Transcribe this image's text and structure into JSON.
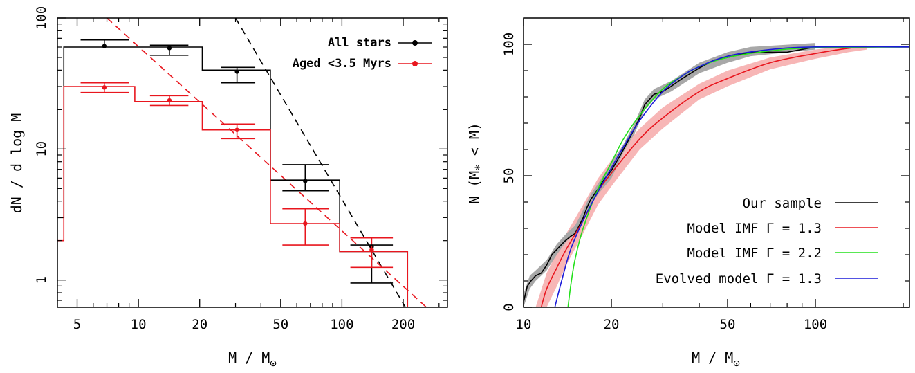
{
  "chart_data": [
    {
      "type": "histogram",
      "xlabel": "M / M",
      "xlabel_sub": "⊙",
      "ylabel": "dN / d log M",
      "xscale": "log",
      "yscale": "log",
      "xlim": [
        4.0,
        330
      ],
      "ylim": [
        0.62,
        100
      ],
      "xticks": [
        5,
        10,
        20,
        50,
        100,
        200
      ],
      "xtick_labels": [
        "5",
        "10",
        "20",
        "50",
        "100",
        "200"
      ],
      "yticks": [
        1,
        10,
        100
      ],
      "ytick_labels": [
        "1",
        "10",
        "100"
      ],
      "legend_position": "top-right",
      "series": [
        {
          "name": "All stars",
          "color": "#000000",
          "bin_edges": [
            4.3,
            9.6,
            20.6,
            44.5,
            97.5,
            210
          ],
          "step_values": [
            60,
            60,
            40,
            5.8,
            1.65
          ],
          "left_edge_value": 3.0,
          "points": [
            {
              "x": 6.8,
              "y": 61,
              "yerr_low": 0,
              "yerr_high": 68
            },
            {
              "x": 14.2,
              "y": 59,
              "yerr_low": 52,
              "yerr_high": 62
            },
            {
              "x": 30.5,
              "y": 39,
              "yerr_low": 32,
              "yerr_high": 42
            },
            {
              "x": 66,
              "y": 5.7,
              "yerr_low": 4.8,
              "yerr_high": 7.6
            },
            {
              "x": 140,
              "y": 1.8,
              "yerr_low": 0.95,
              "yerr_high": 1.85
            }
          ]
        },
        {
          "name": "Aged <3.5 Myrs",
          "color": "#e8161e",
          "bin_edges": [
            4.3,
            9.6,
            20.6,
            44.5,
            97.5,
            210
          ],
          "step_values": [
            30,
            23,
            14,
            2.7,
            1.65
          ],
          "left_edge_value": 2.0,
          "points": [
            {
              "x": 6.8,
              "y": 29.5,
              "yerr_low": 27,
              "yerr_high": 32
            },
            {
              "x": 14.2,
              "y": 23.5,
              "yerr_low": 21.5,
              "yerr_high": 25.5
            },
            {
              "x": 30.5,
              "y": 14,
              "yerr_low": 12,
              "yerr_high": 15.5
            },
            {
              "x": 66,
              "y": 2.7,
              "yerr_low": 1.85,
              "yerr_high": 3.5
            },
            {
              "x": 140,
              "y": 1.7,
              "yerr_low": 1.25,
              "yerr_high": 2.1
            }
          ]
        }
      ],
      "fits": [
        {
          "color": "#000000",
          "dashed": true,
          "points": [
            [
              30,
              100
            ],
            [
              205,
              0.62
            ]
          ]
        },
        {
          "color": "#e8161e",
          "dashed": true,
          "points": [
            [
              7.0,
              100
            ],
            [
              260,
              0.62
            ]
          ]
        }
      ],
      "caps": [
        {
          "color": "#000000",
          "x": [
            5.2,
            9.0
          ],
          "y": 68
        },
        {
          "color": "#000000",
          "x": [
            11.4,
            17.6
          ],
          "y": 62
        },
        {
          "color": "#000000",
          "x": [
            11.4,
            17.6
          ],
          "y": 52
        },
        {
          "color": "#000000",
          "x": [
            25.5,
            37.5
          ],
          "y": 42
        },
        {
          "color": "#000000",
          "x": [
            25.5,
            37.5
          ],
          "y": 32
        },
        {
          "color": "#000000",
          "x": [
            51,
            86
          ],
          "y": 7.6
        },
        {
          "color": "#000000",
          "x": [
            51,
            86
          ],
          "y": 4.8
        },
        {
          "color": "#000000",
          "x": [
            110,
            178
          ],
          "y": 1.85
        },
        {
          "color": "#000000",
          "x": [
            110,
            178
          ],
          "y": 0.95
        },
        {
          "color": "#e8161e",
          "x": [
            5.2,
            9.0
          ],
          "y": 32
        },
        {
          "color": "#e8161e",
          "x": [
            5.2,
            9.0
          ],
          "y": 27
        },
        {
          "color": "#e8161e",
          "x": [
            11.4,
            17.6
          ],
          "y": 25.5
        },
        {
          "color": "#e8161e",
          "x": [
            11.4,
            17.6
          ],
          "y": 21.5
        },
        {
          "color": "#e8161e",
          "x": [
            25.5,
            37.5
          ],
          "y": 15.5
        },
        {
          "color": "#e8161e",
          "x": [
            25.5,
            37.5
          ],
          "y": 12
        },
        {
          "color": "#e8161e",
          "x": [
            51,
            86
          ],
          "y": 3.5
        },
        {
          "color": "#e8161e",
          "x": [
            51,
            86
          ],
          "y": 1.85
        },
        {
          "color": "#e8161e",
          "x": [
            110,
            178
          ],
          "y": 2.1
        },
        {
          "color": "#e8161e",
          "x": [
            110,
            178
          ],
          "y": 1.25
        }
      ]
    },
    {
      "type": "line",
      "xlabel": "M / M",
      "xlabel_sub": "⊙",
      "ylabel_pre": "N (M",
      "ylabel_sub": "*",
      "ylabel_post": " < M)",
      "xscale": "log",
      "xlim": [
        10,
        210
      ],
      "ylim": [
        0,
        110
      ],
      "xticks": [
        10,
        20,
        50,
        100
      ],
      "xtick_labels": [
        "10",
        "20",
        "50",
        "100"
      ],
      "yticks": [
        0,
        50,
        100
      ],
      "ytick_labels": [
        "0",
        "50",
        "100"
      ],
      "legend_position": "bottom-right",
      "series": [
        {
          "name": "Our sample",
          "color": "#000000",
          "points": [
            [
              10.0,
              2
            ],
            [
              10.3,
              8
            ],
            [
              10.6,
              10
            ],
            [
              11.0,
              12
            ],
            [
              11.5,
              13
            ],
            [
              12.0,
              16
            ],
            [
              12.5,
              20
            ],
            [
              13.0,
              22
            ],
            [
              13.8,
              25
            ],
            [
              14.5,
              27
            ],
            [
              15.0,
              28
            ],
            [
              15.5,
              31
            ],
            [
              16.0,
              34
            ],
            [
              16.5,
              38
            ],
            [
              17.0,
              41
            ],
            [
              18.0,
              45
            ],
            [
              19.0,
              49
            ],
            [
              20.0,
              52
            ],
            [
              21.5,
              58
            ],
            [
              22.5,
              62
            ],
            [
              23.0,
              64
            ],
            [
              24.0,
              68
            ],
            [
              25.0,
              72
            ],
            [
              26.0,
              77
            ],
            [
              28.0,
              81
            ],
            [
              30.0,
              82
            ],
            [
              32.0,
              84
            ],
            [
              35.0,
              87
            ],
            [
              40.0,
              91
            ],
            [
              45.0,
              94
            ],
            [
              50.0,
              95
            ],
            [
              60.0,
              97
            ],
            [
              80.0,
              97
            ],
            [
              100.0,
              99
            ],
            [
              210.0,
              99
            ]
          ]
        },
        {
          "name": "Model IMF Γ = 1.3",
          "color": "#e8161e",
          "points": [
            [
              11.5,
              0
            ],
            [
              12.0,
              7
            ],
            [
              13.0,
              15
            ],
            [
              14.0,
              22
            ],
            [
              16.0,
              33
            ],
            [
              18.0,
              44
            ],
            [
              20.0,
              51
            ],
            [
              25.0,
              64
            ],
            [
              30.0,
              72
            ],
            [
              40.0,
              82
            ],
            [
              50.0,
              87
            ],
            [
              70.0,
              93
            ],
            [
              100.0,
              96.5
            ],
            [
              130.0,
              98.5
            ],
            [
              150.0,
              99
            ],
            [
              210.0,
              99
            ]
          ]
        },
        {
          "name": "Model IMF Γ = 2.2",
          "color": "#22e01a",
          "points": [
            [
              14.2,
              0
            ],
            [
              14.5,
              8
            ],
            [
              15.0,
              18
            ],
            [
              16.0,
              30
            ],
            [
              18.0,
              45
            ],
            [
              20.0,
              55
            ],
            [
              22.0,
              64
            ],
            [
              25.0,
              73
            ],
            [
              30.0,
              83
            ],
            [
              35.0,
              88
            ],
            [
              40.0,
              91.5
            ],
            [
              50.0,
              95
            ],
            [
              70.0,
              97.5
            ],
            [
              100.0,
              98.7
            ],
            [
              210.0,
              99
            ]
          ]
        },
        {
          "name": "Evolved model Γ = 1.3",
          "color": "#1a1ad8",
          "points": [
            [
              12.8,
              0
            ],
            [
              13.5,
              10
            ],
            [
              14.5,
              22
            ],
            [
              16.0,
              33
            ],
            [
              18.0,
              44
            ],
            [
              20.0,
              53
            ],
            [
              22.0,
              61
            ],
            [
              25.0,
              71
            ],
            [
              30.0,
              82
            ],
            [
              35.0,
              88
            ],
            [
              40.0,
              91.5
            ],
            [
              50.0,
              95.5
            ],
            [
              70.0,
              98
            ],
            [
              100.0,
              99
            ],
            [
              210.0,
              99
            ]
          ]
        }
      ],
      "bands": [
        {
          "color": "#f7b6b6",
          "upper": [
            [
              11.0,
              0
            ],
            [
              12.0,
              13
            ],
            [
              14.0,
              28
            ],
            [
              16.0,
              39
            ],
            [
              18.0,
              49
            ],
            [
              20.0,
              56
            ],
            [
              25.0,
              68
            ],
            [
              30.0,
              76
            ],
            [
              40.0,
              85
            ],
            [
              50.0,
              90
            ],
            [
              70.0,
              95
            ],
            [
              100.0,
              98
            ],
            [
              130.0,
              99.5
            ],
            [
              150.0,
              99.5
            ]
          ],
          "lower": [
            [
              150.0,
              98
            ],
            [
              130.0,
              97
            ],
            [
              100.0,
              94.5
            ],
            [
              70.0,
              90.5
            ],
            [
              50.0,
              84
            ],
            [
              40.0,
              79
            ],
            [
              30.0,
              68
            ],
            [
              25.0,
              60
            ],
            [
              20.0,
              46
            ],
            [
              18.0,
              39
            ],
            [
              16.0,
              28
            ],
            [
              14.0,
              16
            ],
            [
              13.0,
              8
            ],
            [
              12.0,
              0
            ]
          ]
        },
        {
          "color": "#a8a8a8",
          "upper": [
            [
              10.0,
              5
            ],
            [
              10.5,
              12
            ],
            [
              11.0,
              14
            ],
            [
              12.0,
              18
            ],
            [
              13.0,
              24
            ],
            [
              14.0,
              28
            ],
            [
              15.0,
              31
            ],
            [
              16.0,
              37
            ],
            [
              17.0,
              43
            ],
            [
              18.0,
              47
            ],
            [
              20.0,
              55
            ],
            [
              22.0,
              62
            ],
            [
              24.0,
              70
            ],
            [
              26.0,
              79
            ],
            [
              28.0,
              83
            ],
            [
              32.0,
              86
            ],
            [
              40.0,
              93
            ],
            [
              50.0,
              97
            ],
            [
              60.0,
              99
            ],
            [
              100.0,
              100.5
            ]
          ],
          "lower": [
            [
              100.0,
              98
            ],
            [
              60.0,
              95.5
            ],
            [
              50.0,
              93
            ],
            [
              40.0,
              89
            ],
            [
              32.0,
              82
            ],
            [
              28.0,
              79
            ],
            [
              26.0,
              75
            ],
            [
              24.0,
              66
            ],
            [
              22.0,
              59
            ],
            [
              20.0,
              49
            ],
            [
              18.0,
              43
            ],
            [
              17.0,
              39
            ],
            [
              16.0,
              33
            ],
            [
              15.0,
              28
            ],
            [
              14.0,
              25
            ],
            [
              13.0,
              20
            ],
            [
              12.0,
              14
            ],
            [
              11.0,
              10
            ],
            [
              10.5,
              7
            ],
            [
              10.0,
              0
            ]
          ]
        }
      ]
    }
  ]
}
